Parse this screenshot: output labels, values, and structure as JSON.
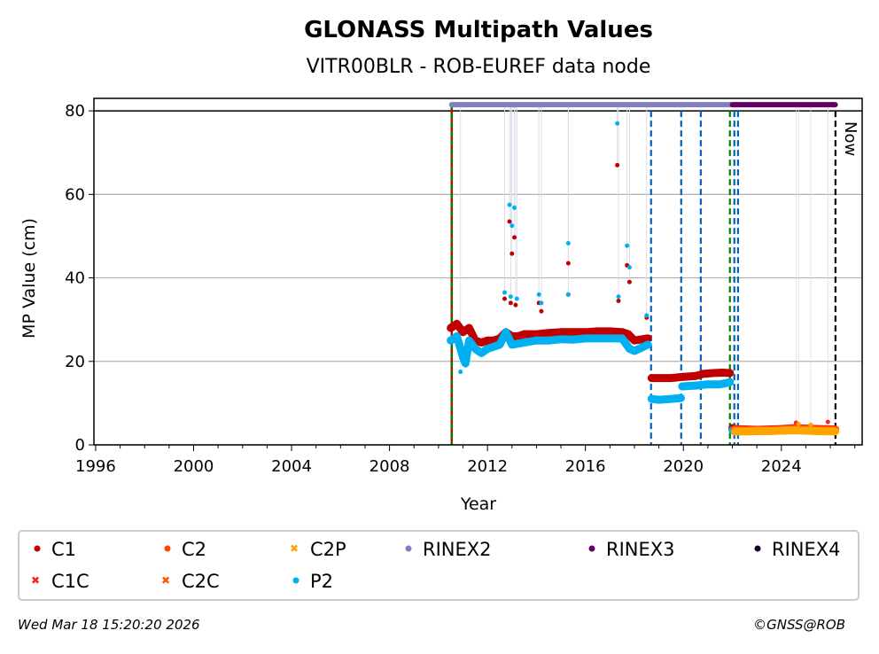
{
  "chart_data": {
    "type": "scatter",
    "title": "GLONASS Multipath Values",
    "subtitle": "VITR00BLR - ROB-EUREF data node",
    "xlabel": "Year",
    "ylabel": "MP Value (cm)",
    "xlim": [
      1995.93,
      2027.3
    ],
    "ylim": [
      0,
      83
    ],
    "xticks": [
      1996,
      2000,
      2004,
      2008,
      2012,
      2016,
      2020,
      2024
    ],
    "yticks": [
      0,
      20,
      40,
      60,
      80
    ],
    "grid": "horizontal",
    "legend_position": "bottom",
    "legend": [
      {
        "name": "C1",
        "color": "#c00000",
        "marker": "dot"
      },
      {
        "name": "C2",
        "color": "#ff4500",
        "marker": "dot"
      },
      {
        "name": "C2P",
        "color": "#ffa500",
        "marker": "x"
      },
      {
        "name": "RINEX2",
        "color": "#8080c0",
        "marker": "dot"
      },
      {
        "name": "RINEX3",
        "color": "#660066",
        "marker": "dot"
      },
      {
        "name": "RINEX4",
        "color": "#1a0022",
        "marker": "dot"
      },
      {
        "name": "C1C",
        "color": "#ff2020",
        "marker": "x"
      },
      {
        "name": "C2C",
        "color": "#ff5500",
        "marker": "x"
      },
      {
        "name": "P2",
        "color": "#00b0f0",
        "marker": "dot"
      }
    ],
    "series": [
      {
        "name": "C1",
        "color": "#c00000",
        "segments": [
          [
            [
              2010.5,
              28
            ],
            [
              2010.75,
              29
            ],
            [
              2011,
              27
            ],
            [
              2011.25,
              28
            ],
            [
              2011.5,
              25
            ],
            [
              2011.75,
              24.5
            ],
            [
              2012,
              25
            ],
            [
              2012.25,
              25
            ],
            [
              2012.5,
              25.5
            ],
            [
              2012.75,
              27
            ],
            [
              2013,
              26
            ],
            [
              2013.25,
              26
            ],
            [
              2013.5,
              26.5
            ],
            [
              2014,
              26.5
            ],
            [
              2014.5,
              26.8
            ],
            [
              2015,
              27
            ],
            [
              2015.5,
              27
            ],
            [
              2016,
              27
            ],
            [
              2016.5,
              27.2
            ],
            [
              2017,
              27.2
            ],
            [
              2017.5,
              27
            ],
            [
              2017.75,
              26.5
            ],
            [
              2018,
              25
            ],
            [
              2018.55,
              25.5
            ]
          ],
          [
            [
              2018.7,
              16
            ],
            [
              2019,
              16
            ],
            [
              2019.5,
              16
            ],
            [
              2020,
              16.3
            ],
            [
              2020.5,
              16.5
            ],
            [
              2020.8,
              17
            ],
            [
              2021.2,
              17.2
            ],
            [
              2021.6,
              17.3
            ],
            [
              2021.9,
              17.2
            ]
          ],
          [
            [
              2022.0,
              4
            ],
            [
              2022.15,
              3.8
            ]
          ]
        ],
        "outliers": [
          [
            2012.7,
            35
          ],
          [
            2012.9,
            53.5
          ],
          [
            2013.0,
            45.8
          ],
          [
            2013.1,
            49.7
          ],
          [
            2012.95,
            34
          ],
          [
            2013.15,
            33.5
          ],
          [
            2014.1,
            34
          ],
          [
            2014.2,
            32
          ],
          [
            2015.3,
            43.5
          ],
          [
            2015.3,
            36
          ],
          [
            2017.3,
            67
          ],
          [
            2017.35,
            34.5
          ],
          [
            2017.7,
            43
          ],
          [
            2017.8,
            39
          ],
          [
            2018.5,
            30.5
          ]
        ]
      },
      {
        "name": "P2",
        "color": "#00b0f0",
        "segments": [
          [
            [
              2010.5,
              25
            ],
            [
              2010.75,
              26
            ],
            [
              2011,
              21
            ],
            [
              2011.1,
              19.5
            ],
            [
              2011.25,
              25
            ],
            [
              2011.5,
              23
            ],
            [
              2011.75,
              22
            ],
            [
              2012,
              23
            ],
            [
              2012.5,
              24
            ],
            [
              2012.75,
              27
            ],
            [
              2013,
              24
            ],
            [
              2013.5,
              24.5
            ],
            [
              2014,
              25
            ],
            [
              2014.5,
              25
            ],
            [
              2015,
              25.3
            ],
            [
              2015.5,
              25.2
            ],
            [
              2016,
              25.5
            ],
            [
              2016.5,
              25.5
            ],
            [
              2017,
              25.5
            ],
            [
              2017.5,
              25.5
            ],
            [
              2017.8,
              23
            ],
            [
              2018,
              22.5
            ],
            [
              2018.55,
              24
            ]
          ],
          [
            [
              2018.7,
              11
            ],
            [
              2019,
              10.8
            ],
            [
              2019.5,
              11
            ],
            [
              2019.9,
              11.2
            ]
          ],
          [
            [
              2019.95,
              14
            ],
            [
              2020.5,
              14.2
            ],
            [
              2021,
              14.5
            ],
            [
              2021.5,
              14.5
            ],
            [
              2021.9,
              15
            ]
          ],
          [
            [
              2022.0,
              3.5
            ],
            [
              2022.1,
              3.3
            ]
          ]
        ],
        "outliers": [
          [
            2010.9,
            17.5
          ],
          [
            2012.7,
            36.5
          ],
          [
            2012.9,
            57.5
          ],
          [
            2013.0,
            52.5
          ],
          [
            2013.1,
            56.8
          ],
          [
            2012.95,
            35.5
          ],
          [
            2013.2,
            35
          ],
          [
            2014.1,
            36
          ],
          [
            2014.2,
            34
          ],
          [
            2015.3,
            48.3
          ],
          [
            2015.3,
            36
          ],
          [
            2017.3,
            77
          ],
          [
            2017.35,
            35.5
          ],
          [
            2017.7,
            47.7
          ],
          [
            2017.8,
            42.5
          ],
          [
            2018.5,
            31
          ]
        ]
      },
      {
        "name": "C1C",
        "color": "#ff2020",
        "segments": [
          [
            [
              2022.1,
              3.8
            ],
            [
              2022.6,
              3.7
            ],
            [
              2023,
              3.6
            ],
            [
              2023.5,
              3.7
            ],
            [
              2024,
              3.8
            ],
            [
              2024.5,
              4.0
            ],
            [
              2025,
              3.9
            ],
            [
              2025.5,
              3.8
            ],
            [
              2026.2,
              3.7
            ]
          ]
        ],
        "outliers": [
          [
            2024.6,
            5.3
          ],
          [
            2025.9,
            5.5
          ]
        ]
      },
      {
        "name": "C2C",
        "color": "#ff5500",
        "segments": [
          [
            [
              2022.1,
              3.5
            ],
            [
              2022.6,
              3.4
            ],
            [
              2023,
              3.5
            ],
            [
              2023.5,
              3.5
            ],
            [
              2024,
              3.6
            ],
            [
              2024.5,
              3.8
            ],
            [
              2025,
              3.7
            ],
            [
              2025.5,
              3.6
            ],
            [
              2026.2,
              3.5
            ]
          ]
        ],
        "outliers": []
      },
      {
        "name": "C2P",
        "color": "#ffa500",
        "segments": [
          [
            [
              2022.1,
              3.2
            ],
            [
              2022.6,
              3.2
            ],
            [
              2023,
              3.3
            ],
            [
              2023.5,
              3.3
            ],
            [
              2024,
              3.4
            ],
            [
              2024.5,
              3.5
            ],
            [
              2025,
              3.4
            ],
            [
              2025.5,
              3.3
            ],
            [
              2026.2,
              3.2
            ]
          ]
        ],
        "outliers": [
          [
            2024.7,
            5.0
          ],
          [
            2025.2,
            4.8
          ]
        ]
      }
    ],
    "file_format_bars": [
      {
        "name": "RINEX2",
        "color": "#8080c0",
        "start": 2010.54,
        "end": 2021.95,
        "value": 81.5
      },
      {
        "name": "RINEX3",
        "color": "#660066",
        "start": 2022.0,
        "end": 2026.2,
        "value": 81.5
      }
    ],
    "event_lines": [
      {
        "year": 2010.54,
        "color": "#008000",
        "style": "dashed-red-green"
      },
      {
        "year": 2018.68,
        "color": "#0060c0",
        "style": "dashed"
      },
      {
        "year": 2019.91,
        "color": "#0060c0",
        "style": "dashed"
      },
      {
        "year": 2020.71,
        "color": "#0060c0",
        "style": "dashed"
      },
      {
        "year": 2021.9,
        "color": "#008000",
        "style": "dashed"
      },
      {
        "year": 2022.08,
        "color": "#0060c0",
        "style": "dashed"
      },
      {
        "year": 2022.23,
        "color": "#0060c0",
        "style": "dashed"
      }
    ],
    "now_line": {
      "year": 2026.21,
      "label": "Now"
    }
  },
  "footer": {
    "timestamp": "Wed Mar 18 15:20:20 2026",
    "credit": "©GNSS@ROB"
  }
}
